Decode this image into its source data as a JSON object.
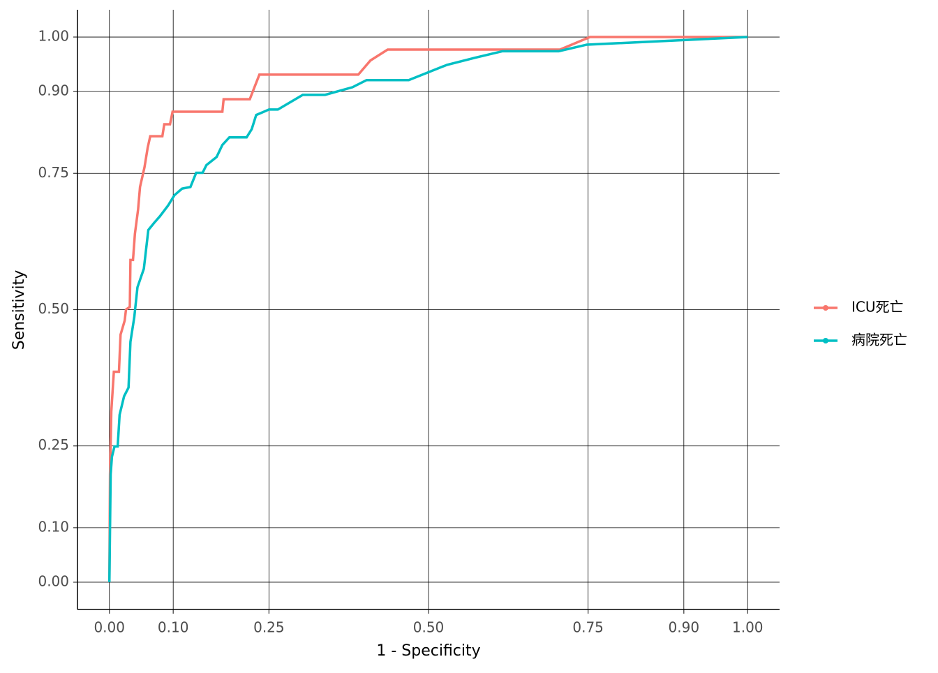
{
  "chart_data": {
    "type": "line",
    "xlabel": "1 - Specificity",
    "ylabel": "Sensitivity",
    "xlim": [
      -0.05,
      1.05
    ],
    "ylim": [
      -0.05,
      1.05
    ],
    "xticks": [
      {
        "value": 0,
        "label": "0.00"
      },
      {
        "value": 0.1,
        "label": "0.10"
      },
      {
        "value": 0.25,
        "label": "0.25"
      },
      {
        "value": 0.5,
        "label": "0.50"
      },
      {
        "value": 0.75,
        "label": "0.75"
      },
      {
        "value": 0.9,
        "label": "0.90"
      },
      {
        "value": 1,
        "label": "1.00"
      }
    ],
    "yticks": [
      {
        "value": 0,
        "label": "0.00"
      },
      {
        "value": 0.1,
        "label": "0.10"
      },
      {
        "value": 0.25,
        "label": "0.25"
      },
      {
        "value": 0.5,
        "label": "0.50"
      },
      {
        "value": 0.75,
        "label": "0.75"
      },
      {
        "value": 0.9,
        "label": "0.90"
      },
      {
        "value": 1,
        "label": "1.00"
      }
    ],
    "grid": true,
    "legend": "right",
    "series": [
      {
        "name": "ICU死亡",
        "color": "#f8766d",
        "x": [
          0,
          0.001,
          0.003,
          0.007,
          0.015,
          0.0175,
          0.024,
          0.026,
          0.032,
          0.033,
          0.037,
          0.04,
          0.045,
          0.048,
          0.055,
          0.06,
          0.064,
          0.083,
          0.086,
          0.095,
          0.099,
          0.177,
          0.179,
          0.22,
          0.235,
          0.39,
          0.409,
          0.436,
          0.706,
          0.753,
          1
        ],
        "values": [
          0,
          0.198,
          0.313,
          0.386,
          0.386,
          0.454,
          0.48,
          0.5,
          0.505,
          0.591,
          0.591,
          0.639,
          0.684,
          0.725,
          0.761,
          0.797,
          0.818,
          0.818,
          0.84,
          0.84,
          0.863,
          0.863,
          0.886,
          0.886,
          0.931,
          0.931,
          0.957,
          0.977,
          0.977,
          1,
          1
        ]
      },
      {
        "name": "病院死亡",
        "color": "#00bfc4",
        "x": [
          0,
          0.002,
          0.004,
          0.008,
          0.013,
          0.016,
          0.023,
          0.03,
          0.033,
          0.039,
          0.044,
          0.054,
          0.061,
          0.07,
          0.079,
          0.092,
          0.102,
          0.114,
          0.127,
          0.136,
          0.146,
          0.152,
          0.168,
          0.177,
          0.188,
          0.215,
          0.223,
          0.23,
          0.25,
          0.264,
          0.303,
          0.338,
          0.381,
          0.403,
          0.469,
          0.529,
          0.573,
          0.616,
          0.704,
          0.748,
          1
        ],
        "values": [
          0,
          0.198,
          0.23,
          0.249,
          0.249,
          0.307,
          0.341,
          0.357,
          0.441,
          0.486,
          0.541,
          0.575,
          0.646,
          0.659,
          0.671,
          0.691,
          0.71,
          0.722,
          0.725,
          0.751,
          0.751,
          0.765,
          0.78,
          0.802,
          0.816,
          0.816,
          0.831,
          0.857,
          0.867,
          0.867,
          0.894,
          0.894,
          0.908,
          0.921,
          0.921,
          0.949,
          0.962,
          0.974,
          0.974,
          0.986,
          1
        ]
      }
    ]
  }
}
